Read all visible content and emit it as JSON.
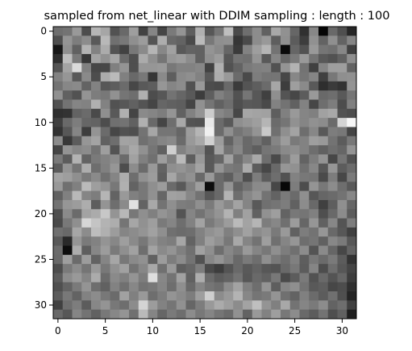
{
  "chart_data": {
    "type": "heatmap",
    "title": "sampled from net_linear with DDIM sampling : length : 100",
    "xlabel": "",
    "ylabel": "",
    "colormap": "gray",
    "value_range": [
      0,
      1
    ],
    "grid": false,
    "rows": 32,
    "cols": 32,
    "xlim": [
      -0.5,
      31.5
    ],
    "ylim": [
      31.5,
      -0.5
    ],
    "xticks": [
      0,
      5,
      10,
      15,
      20,
      25,
      30
    ],
    "yticks": [
      0,
      5,
      10,
      15,
      20,
      25,
      30
    ],
    "xtick_labels": [
      "0",
      "5",
      "10",
      "15",
      "20",
      "25",
      "30"
    ],
    "ytick_labels": [
      "0",
      "5",
      "10",
      "15",
      "20",
      "25",
      "30"
    ],
    "values": [
      [
        0.43,
        0.45,
        0.6,
        0.3,
        0.71,
        0.65,
        0.32,
        0.41,
        0.62,
        0.26,
        0.52,
        0.27,
        0.48,
        0.58,
        0.37,
        0.69,
        0.34,
        0.46,
        0.75,
        0.29,
        0.43,
        0.55,
        0.38,
        0.66,
        0.57,
        0.4,
        0.19,
        0.53,
        0.02,
        0.41,
        0.31,
        0.15
      ],
      [
        0.31,
        0.58,
        0.49,
        0.55,
        0.35,
        0.72,
        0.44,
        0.47,
        0.56,
        0.61,
        0.33,
        0.68,
        0.41,
        0.39,
        0.29,
        0.73,
        0.47,
        0.56,
        0.57,
        0.21,
        0.29,
        0.55,
        0.6,
        0.37,
        0.56,
        0.36,
        0.24,
        0.57,
        0.39,
        0.56,
        0.39,
        0.52
      ],
      [
        0.09,
        0.56,
        0.38,
        0.7,
        0.51,
        0.67,
        0.33,
        0.26,
        0.47,
        0.54,
        0.71,
        0.53,
        0.63,
        0.35,
        0.39,
        0.38,
        0.58,
        0.54,
        0.4,
        0.23,
        0.51,
        0.62,
        0.71,
        0.45,
        0.04,
        0.4,
        0.32,
        0.6,
        0.46,
        0.44,
        0.53,
        0.25
      ],
      [
        0.18,
        0.74,
        0.48,
        0.22,
        0.64,
        0.57,
        0.65,
        0.42,
        0.31,
        0.67,
        0.56,
        0.46,
        0.59,
        0.61,
        0.55,
        0.38,
        0.56,
        0.61,
        0.34,
        0.45,
        0.44,
        0.58,
        0.35,
        0.52,
        0.4,
        0.48,
        0.6,
        0.45,
        0.35,
        0.32,
        0.38,
        0.56
      ],
      [
        0.33,
        0.64,
        0.86,
        0.5,
        0.28,
        0.28,
        0.5,
        0.58,
        0.31,
        0.59,
        0.59,
        0.6,
        0.47,
        0.51,
        0.51,
        0.53,
        0.26,
        0.69,
        0.32,
        0.39,
        0.48,
        0.5,
        0.51,
        0.32,
        0.58,
        0.7,
        0.45,
        0.25,
        0.52,
        0.62,
        0.62,
        0.39
      ],
      [
        0.51,
        0.59,
        0.35,
        0.54,
        0.3,
        0.67,
        0.73,
        0.5,
        0.41,
        0.47,
        0.21,
        0.54,
        0.37,
        0.54,
        0.56,
        0.51,
        0.35,
        0.68,
        0.6,
        0.42,
        0.29,
        0.49,
        0.46,
        0.46,
        0.28,
        0.53,
        0.46,
        0.52,
        0.25,
        0.47,
        0.56,
        0.57
      ],
      [
        0.45,
        0.53,
        0.54,
        0.39,
        0.51,
        0.34,
        0.37,
        0.42,
        0.28,
        0.35,
        0.37,
        0.59,
        0.52,
        0.55,
        0.32,
        0.6,
        0.3,
        0.29,
        0.41,
        0.23,
        0.33,
        0.37,
        0.42,
        0.65,
        0.24,
        0.62,
        0.54,
        0.35,
        0.18,
        0.23,
        0.2,
        0.58
      ],
      [
        0.57,
        0.38,
        0.32,
        0.58,
        0.49,
        0.47,
        0.57,
        0.46,
        0.43,
        0.69,
        0.3,
        0.34,
        0.45,
        0.4,
        0.35,
        0.24,
        0.37,
        0.5,
        0.45,
        0.32,
        0.46,
        0.34,
        0.25,
        0.56,
        0.33,
        0.28,
        0.36,
        0.6,
        0.41,
        0.43,
        0.35,
        0.46
      ],
      [
        0.32,
        0.45,
        0.52,
        0.51,
        0.69,
        0.51,
        0.32,
        0.34,
        0.38,
        0.33,
        0.27,
        0.4,
        0.38,
        0.37,
        0.27,
        0.57,
        0.46,
        0.38,
        0.43,
        0.31,
        0.35,
        0.34,
        0.29,
        0.51,
        0.45,
        0.38,
        0.51,
        0.28,
        0.43,
        0.49,
        0.3,
        0.5
      ],
      [
        0.19,
        0.2,
        0.39,
        0.42,
        0.29,
        0.56,
        0.35,
        0.69,
        0.27,
        0.54,
        0.52,
        0.49,
        0.58,
        0.38,
        0.51,
        0.58,
        0.8,
        0.53,
        0.49,
        0.28,
        0.65,
        0.64,
        0.63,
        0.37,
        0.5,
        0.6,
        0.52,
        0.5,
        0.63,
        0.66,
        0.32,
        0.3
      ],
      [
        0.25,
        0.41,
        0.49,
        0.4,
        0.39,
        0.3,
        0.44,
        0.45,
        0.38,
        0.69,
        0.41,
        0.27,
        0.43,
        0.66,
        0.33,
        0.32,
        0.91,
        0.42,
        0.35,
        0.56,
        0.59,
        0.62,
        0.71,
        0.42,
        0.46,
        0.57,
        0.52,
        0.57,
        0.55,
        0.42,
        0.83,
        0.97
      ],
      [
        0.2,
        0.34,
        0.52,
        0.24,
        0.58,
        0.42,
        0.28,
        0.32,
        0.31,
        0.45,
        0.65,
        0.46,
        0.46,
        0.4,
        0.61,
        0.71,
        0.94,
        0.42,
        0.56,
        0.46,
        0.5,
        0.58,
        0.79,
        0.44,
        0.56,
        0.64,
        0.43,
        0.53,
        0.35,
        0.49,
        0.47,
        0.27
      ],
      [
        0.55,
        0.22,
        0.36,
        0.59,
        0.64,
        0.38,
        0.43,
        0.64,
        0.63,
        0.44,
        0.48,
        0.52,
        0.54,
        0.42,
        0.6,
        0.66,
        0.82,
        0.61,
        0.39,
        0.51,
        0.41,
        0.46,
        0.38,
        0.52,
        0.61,
        0.48,
        0.51,
        0.62,
        0.6,
        0.45,
        0.36,
        0.47
      ],
      [
        0.27,
        0.58,
        0.53,
        0.55,
        0.45,
        0.62,
        0.33,
        0.58,
        0.66,
        0.57,
        0.46,
        0.38,
        0.81,
        0.51,
        0.57,
        0.54,
        0.33,
        0.64,
        0.45,
        0.53,
        0.41,
        0.37,
        0.46,
        0.48,
        0.54,
        0.56,
        0.51,
        0.43,
        0.38,
        0.43,
        0.4,
        0.58
      ],
      [
        0.48,
        0.36,
        0.7,
        0.39,
        0.48,
        0.51,
        0.55,
        0.42,
        0.63,
        0.5,
        0.44,
        0.62,
        0.5,
        0.73,
        0.37,
        0.6,
        0.35,
        0.4,
        0.63,
        0.43,
        0.53,
        0.66,
        0.43,
        0.29,
        0.47,
        0.61,
        0.39,
        0.49,
        0.58,
        0.28,
        0.46,
        0.32
      ],
      [
        0.36,
        0.58,
        0.46,
        0.68,
        0.43,
        0.5,
        0.59,
        0.3,
        0.55,
        0.42,
        0.6,
        0.39,
        0.56,
        0.58,
        0.54,
        0.64,
        0.35,
        0.58,
        0.48,
        0.46,
        0.67,
        0.36,
        0.28,
        0.41,
        0.59,
        0.57,
        0.44,
        0.53,
        0.34,
        0.59,
        0.36,
        0.42
      ],
      [
        0.64,
        0.62,
        0.56,
        0.48,
        0.54,
        0.44,
        0.52,
        0.68,
        0.43,
        0.57,
        0.61,
        0.37,
        0.65,
        0.53,
        0.57,
        0.41,
        0.6,
        0.42,
        0.37,
        0.49,
        0.31,
        0.49,
        0.36,
        0.43,
        0.32,
        0.51,
        0.47,
        0.46,
        0.29,
        0.49,
        0.28,
        0.48
      ],
      [
        0.6,
        0.44,
        0.5,
        0.73,
        0.62,
        0.58,
        0.47,
        0.69,
        0.39,
        0.47,
        0.56,
        0.61,
        0.42,
        0.35,
        0.5,
        0.62,
        0.05,
        0.42,
        0.58,
        0.39,
        0.45,
        0.54,
        0.55,
        0.28,
        0.03,
        0.49,
        0.3,
        0.58,
        0.47,
        0.55,
        0.43,
        0.35
      ],
      [
        0.38,
        0.5,
        0.72,
        0.52,
        0.49,
        0.71,
        0.39,
        0.6,
        0.5,
        0.47,
        0.57,
        0.4,
        0.63,
        0.62,
        0.53,
        0.45,
        0.34,
        0.41,
        0.7,
        0.43,
        0.53,
        0.58,
        0.45,
        0.39,
        0.48,
        0.42,
        0.56,
        0.34,
        0.4,
        0.42,
        0.45,
        0.53
      ],
      [
        0.45,
        0.59,
        0.61,
        0.68,
        0.37,
        0.58,
        0.43,
        0.54,
        0.88,
        0.39,
        0.66,
        0.45,
        0.56,
        0.49,
        0.48,
        0.56,
        0.48,
        0.6,
        0.53,
        0.64,
        0.52,
        0.35,
        0.44,
        0.46,
        0.49,
        0.38,
        0.55,
        0.41,
        0.25,
        0.37,
        0.56,
        0.4
      ],
      [
        0.31,
        0.54,
        0.42,
        0.64,
        0.67,
        0.78,
        0.58,
        0.72,
        0.47,
        0.56,
        0.5,
        0.58,
        0.54,
        0.33,
        0.52,
        0.45,
        0.52,
        0.58,
        0.7,
        0.5,
        0.63,
        0.38,
        0.57,
        0.62,
        0.39,
        0.47,
        0.46,
        0.5,
        0.31,
        0.41,
        0.55,
        0.36
      ],
      [
        0.29,
        0.47,
        0.56,
        0.84,
        0.77,
        0.7,
        0.68,
        0.46,
        0.65,
        0.57,
        0.62,
        0.48,
        0.52,
        0.43,
        0.51,
        0.64,
        0.48,
        0.54,
        0.61,
        0.73,
        0.64,
        0.71,
        0.49,
        0.53,
        0.44,
        0.61,
        0.4,
        0.59,
        0.38,
        0.53,
        0.33,
        0.49
      ],
      [
        0.44,
        0.41,
        0.65,
        0.55,
        0.74,
        0.69,
        0.61,
        0.52,
        0.55,
        0.58,
        0.63,
        0.56,
        0.44,
        0.42,
        0.43,
        0.51,
        0.57,
        0.6,
        0.5,
        0.56,
        0.63,
        0.55,
        0.58,
        0.48,
        0.6,
        0.38,
        0.49,
        0.45,
        0.59,
        0.41,
        0.34,
        0.25
      ],
      [
        0.35,
        0.16,
        0.59,
        0.48,
        0.51,
        0.58,
        0.53,
        0.62,
        0.54,
        0.47,
        0.57,
        0.51,
        0.49,
        0.65,
        0.39,
        0.5,
        0.62,
        0.57,
        0.47,
        0.66,
        0.52,
        0.45,
        0.62,
        0.44,
        0.52,
        0.59,
        0.43,
        0.46,
        0.38,
        0.53,
        0.48,
        0.34
      ],
      [
        0.42,
        0.05,
        0.68,
        0.37,
        0.53,
        0.61,
        0.48,
        0.56,
        0.63,
        0.43,
        0.64,
        0.54,
        0.58,
        0.5,
        0.44,
        0.63,
        0.56,
        0.43,
        0.53,
        0.48,
        0.6,
        0.52,
        0.47,
        0.56,
        0.49,
        0.44,
        0.55,
        0.33,
        0.54,
        0.4,
        0.28,
        0.39
      ],
      [
        0.41,
        0.62,
        0.42,
        0.61,
        0.39,
        0.52,
        0.65,
        0.47,
        0.54,
        0.57,
        0.38,
        0.61,
        0.49,
        0.55,
        0.45,
        0.32,
        0.53,
        0.58,
        0.51,
        0.41,
        0.48,
        0.43,
        0.56,
        0.48,
        0.43,
        0.5,
        0.37,
        0.47,
        0.42,
        0.48,
        0.36,
        0.2
      ],
      [
        0.3,
        0.48,
        0.55,
        0.46,
        0.6,
        0.47,
        0.57,
        0.63,
        0.45,
        0.53,
        0.66,
        0.44,
        0.6,
        0.37,
        0.4,
        0.49,
        0.29,
        0.24,
        0.33,
        0.41,
        0.35,
        0.39,
        0.34,
        0.33,
        0.41,
        0.47,
        0.36,
        0.52,
        0.3,
        0.43,
        0.34,
        0.27
      ],
      [
        0.36,
        0.55,
        0.6,
        0.52,
        0.67,
        0.42,
        0.54,
        0.5,
        0.58,
        0.49,
        0.87,
        0.53,
        0.45,
        0.63,
        0.38,
        0.68,
        0.42,
        0.36,
        0.39,
        0.45,
        0.34,
        0.41,
        0.38,
        0.47,
        0.29,
        0.36,
        0.48,
        0.32,
        0.41,
        0.33,
        0.4,
        0.24
      ],
      [
        0.31,
        0.39,
        0.48,
        0.58,
        0.43,
        0.38,
        0.51,
        0.44,
        0.53,
        0.45,
        0.47,
        0.52,
        0.43,
        0.56,
        0.41,
        0.52,
        0.46,
        0.43,
        0.55,
        0.64,
        0.5,
        0.43,
        0.58,
        0.37,
        0.52,
        0.56,
        0.45,
        0.35,
        0.37,
        0.28,
        0.3,
        0.19
      ],
      [
        0.36,
        0.47,
        0.39,
        0.51,
        0.55,
        0.47,
        0.42,
        0.63,
        0.5,
        0.6,
        0.43,
        0.49,
        0.58,
        0.54,
        0.49,
        0.62,
        0.81,
        0.55,
        0.6,
        0.7,
        0.53,
        0.46,
        0.48,
        0.58,
        0.44,
        0.39,
        0.5,
        0.42,
        0.36,
        0.44,
        0.31,
        0.14
      ],
      [
        0.25,
        0.43,
        0.49,
        0.36,
        0.53,
        0.58,
        0.47,
        0.43,
        0.55,
        0.83,
        0.61,
        0.51,
        0.46,
        0.57,
        0.4,
        0.49,
        0.6,
        0.67,
        0.62,
        0.55,
        0.64,
        0.75,
        0.58,
        0.5,
        0.66,
        0.45,
        0.52,
        0.48,
        0.55,
        0.39,
        0.43,
        0.25
      ],
      [
        0.41,
        0.34,
        0.52,
        0.45,
        0.38,
        0.47,
        0.53,
        0.58,
        0.44,
        0.73,
        0.52,
        0.4,
        0.48,
        0.43,
        0.55,
        0.47,
        0.52,
        0.46,
        0.42,
        0.57,
        0.39,
        0.6,
        0.51,
        0.62,
        0.47,
        0.55,
        0.41,
        0.36,
        0.45,
        0.31,
        0.38,
        0.12
      ]
    ]
  }
}
